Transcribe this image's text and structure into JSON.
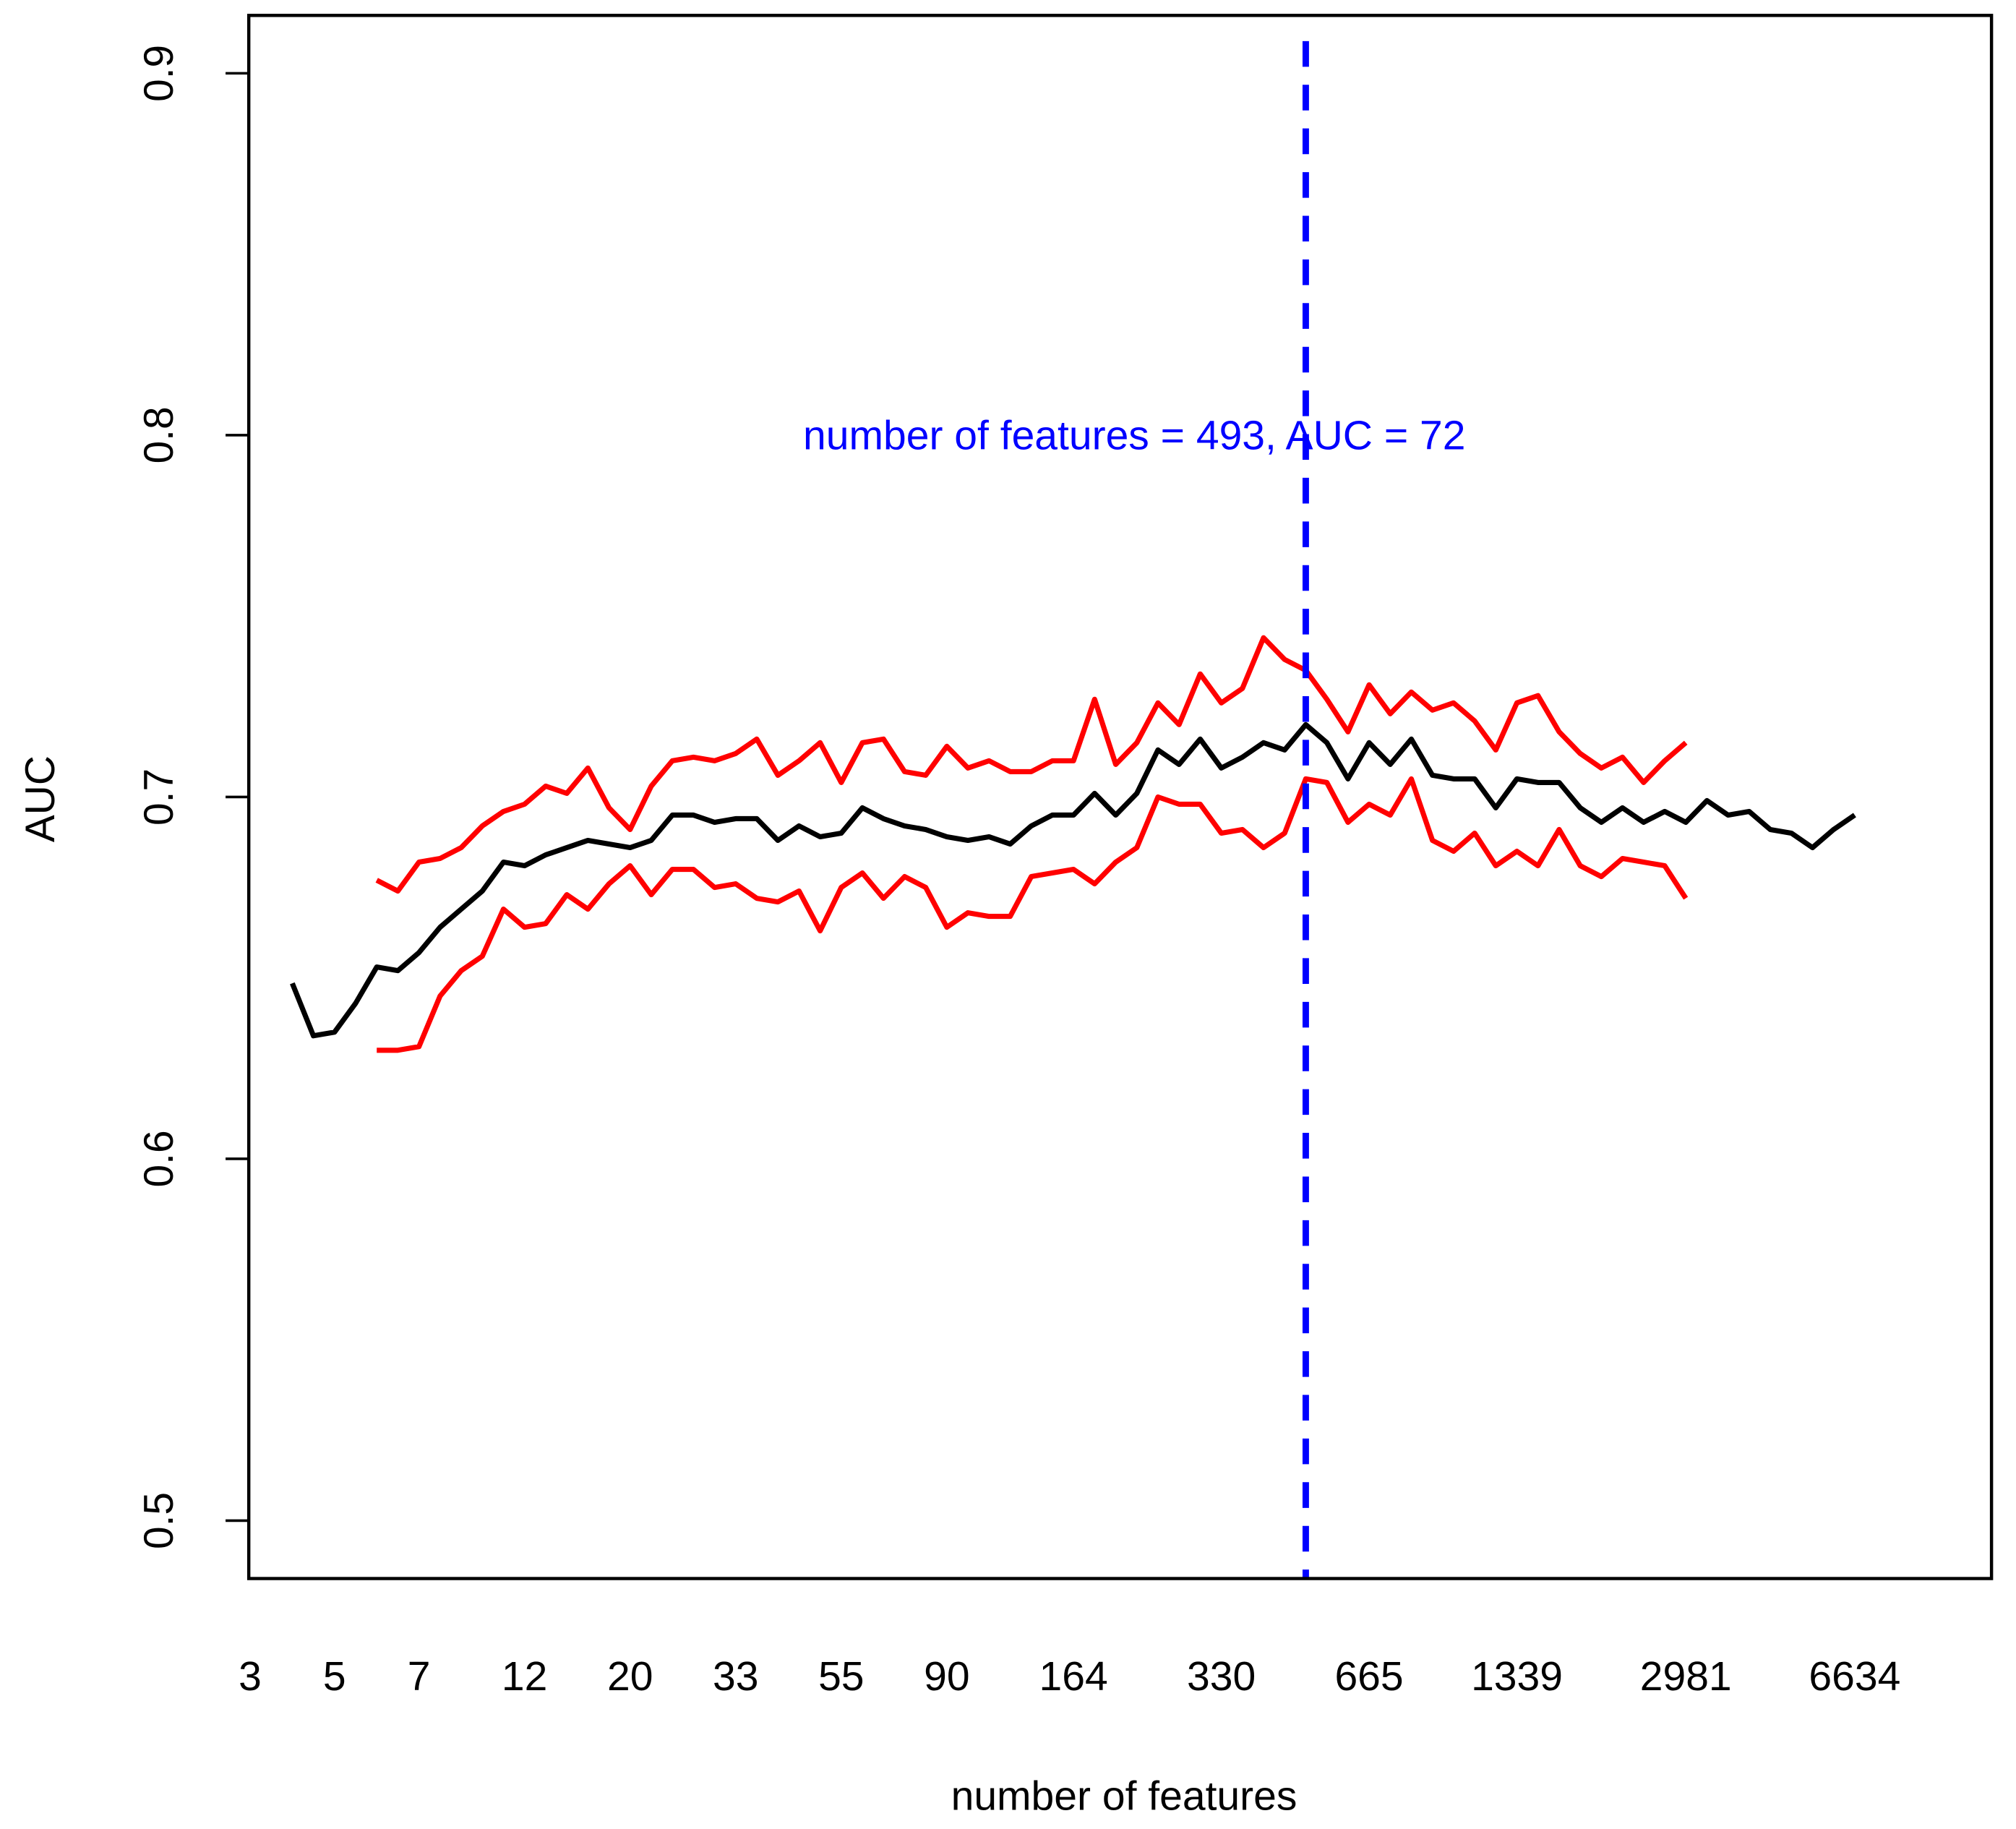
{
  "chart_data": {
    "type": "line",
    "x_label": "number of features",
    "y_label": "AUC",
    "annotation": {
      "text": "number of features = 493, AUC = 72",
      "y": 0.8,
      "color": "#0000ff"
    },
    "vline": {
      "index": 50,
      "color": "#0000ff",
      "style": "dashed"
    },
    "categories": [
      "3",
      null,
      null,
      null,
      "5",
      null,
      null,
      null,
      "7",
      null,
      null,
      null,
      null,
      "12",
      null,
      null,
      null,
      null,
      "20",
      null,
      null,
      null,
      null,
      "33",
      null,
      null,
      null,
      null,
      "55",
      null,
      null,
      null,
      null,
      "90",
      null,
      null,
      null,
      null,
      null,
      "164",
      null,
      null,
      null,
      null,
      null,
      null,
      "330",
      null,
      null,
      null,
      null,
      null,
      null,
      "665",
      null,
      null,
      null,
      null,
      null,
      null,
      "1339",
      null,
      null,
      null,
      null,
      null,
      null,
      null,
      "2981",
      null,
      null,
      null,
      null,
      null,
      null,
      null,
      "6634"
    ],
    "ylim": [
      0.484,
      0.916
    ],
    "yticks": [
      0.5,
      0.6,
      0.7,
      0.8,
      0.9
    ],
    "series": [
      {
        "color": "#ff0000",
        "values": [
          null,
          null,
          null,
          null,
          null,
          null,
          0.677,
          0.674,
          0.682,
          0.683,
          0.686,
          0.692,
          0.696,
          0.698,
          0.703,
          0.701,
          0.708,
          0.697,
          0.691,
          0.703,
          0.71,
          0.711,
          0.71,
          0.712,
          0.716,
          0.706,
          0.71,
          0.715,
          0.704,
          0.715,
          0.716,
          0.707,
          0.706,
          0.714,
          0.708,
          0.71,
          0.707,
          0.707,
          0.71,
          0.71,
          0.727,
          0.709,
          0.715,
          0.726,
          0.72,
          0.734,
          0.726,
          0.73,
          0.744,
          0.738,
          0.735,
          0.727,
          0.718,
          0.731,
          0.723,
          0.729,
          0.724,
          0.726,
          0.721,
          0.713,
          0.726,
          0.728,
          0.718,
          0.712,
          0.708,
          0.711,
          0.704,
          0.71,
          0.715,
          null,
          null,
          null,
          null,
          null,
          null,
          null,
          null
        ]
      },
      {
        "color": "#ff0000",
        "values": [
          null,
          null,
          null,
          null,
          null,
          null,
          0.63,
          0.63,
          0.631,
          0.645,
          0.652,
          0.656,
          0.669,
          0.664,
          0.665,
          0.673,
          0.669,
          0.676,
          0.681,
          0.673,
          0.68,
          0.68,
          0.675,
          0.676,
          0.672,
          0.671,
          0.674,
          0.663,
          0.675,
          0.679,
          0.672,
          0.678,
          0.675,
          0.664,
          0.668,
          0.667,
          0.667,
          0.678,
          0.679,
          0.68,
          0.676,
          0.682,
          0.686,
          0.7,
          0.698,
          0.698,
          0.69,
          0.691,
          0.686,
          0.69,
          0.705,
          0.704,
          0.693,
          0.698,
          0.695,
          0.705,
          0.688,
          0.685,
          0.69,
          0.681,
          0.685,
          0.681,
          0.691,
          0.681,
          0.678,
          0.683,
          0.682,
          0.681,
          0.672,
          null,
          null,
          null,
          null,
          null,
          null,
          null,
          null
        ]
      },
      {
        "color": "#000000",
        "values": [
          null,
          null,
          0.6485,
          0.634,
          0.635,
          0.643,
          0.653,
          0.652,
          0.657,
          0.664,
          0.669,
          0.674,
          0.682,
          0.681,
          0.684,
          0.686,
          0.688,
          0.687,
          0.686,
          0.688,
          0.695,
          0.695,
          0.693,
          0.694,
          0.694,
          0.688,
          0.692,
          0.689,
          0.69,
          0.697,
          0.694,
          0.692,
          0.691,
          0.689,
          0.688,
          0.689,
          0.687,
          0.692,
          0.695,
          0.695,
          0.701,
          0.695,
          0.701,
          0.713,
          0.709,
          0.716,
          0.708,
          0.711,
          0.715,
          0.713,
          0.72,
          0.715,
          0.705,
          0.715,
          0.709,
          0.716,
          0.706,
          0.705,
          0.705,
          0.697,
          0.705,
          0.704,
          0.704,
          0.697,
          0.693,
          0.697,
          0.693,
          0.696,
          0.693,
          0.699,
          0.695,
          0.696,
          0.691,
          0.69,
          0.686,
          0.691,
          0.695
        ]
      }
    ]
  }
}
